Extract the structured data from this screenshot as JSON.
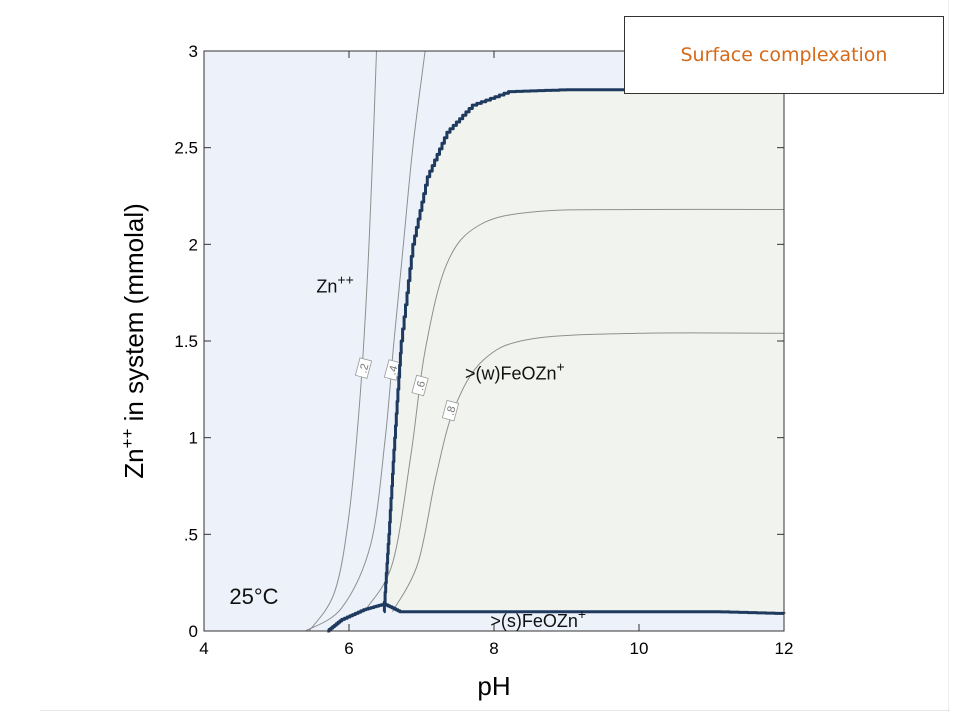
{
  "slide": {
    "title": "Surface complexation"
  },
  "colors": {
    "zn_region": "#edf1fa",
    "sorbed_region": "#f1f4ee",
    "boundary": "#1f3a5f",
    "contour": "#8f8f8f",
    "title_text": "#d46a1a"
  },
  "chart_data": {
    "type": "area",
    "title": "",
    "xlabel": "pH",
    "ylabel_main": "Zn",
    "ylabel_sup": "++",
    "ylabel_rest": " in system (mmolal)",
    "xlim": [
      4,
      12
    ],
    "ylim": [
      0,
      3
    ],
    "xticks": [
      4,
      6,
      8,
      10,
      12
    ],
    "xtick_labels": [
      "4",
      "6",
      "8",
      "10",
      "12"
    ],
    "yticks": [
      0,
      0.5,
      1,
      1.5,
      2,
      2.5,
      3
    ],
    "ytick_labels": [
      "0",
      ".5",
      "1",
      "1.5",
      "2",
      "2.5",
      "3"
    ],
    "regions": [
      {
        "name": "Zn",
        "sup": "++",
        "label_x": 5.55,
        "label_y": 1.75
      },
      {
        "name": ">(w)FeOZn",
        "sup": "+",
        "label_x": 7.6,
        "label_y": 1.3
      },
      {
        "name": ">(s)FeOZn",
        "sup": "+",
        "label_x": 7.95,
        "label_y": 0.02
      }
    ],
    "temperature_label": "25°C",
    "temperature_pos": [
      4.35,
      0.18
    ],
    "boundary_main": [
      [
        6.48,
        0.1
      ],
      [
        6.55,
        0.5
      ],
      [
        6.63,
        1.0
      ],
      [
        6.72,
        1.5
      ],
      [
        6.88,
        2.0
      ],
      [
        7.08,
        2.35
      ],
      [
        7.35,
        2.58
      ],
      [
        7.7,
        2.72
      ],
      [
        8.2,
        2.79
      ],
      [
        9.0,
        2.8
      ],
      [
        10.0,
        2.8
      ]
    ],
    "boundary_lower": [
      [
        5.7,
        0.0
      ],
      [
        5.9,
        0.06
      ],
      [
        6.2,
        0.11
      ],
      [
        6.48,
        0.14
      ],
      [
        6.7,
        0.1
      ],
      [
        7.0,
        0.1
      ],
      [
        8.0,
        0.1
      ],
      [
        9.0,
        0.1
      ],
      [
        10.0,
        0.1
      ],
      [
        11.0,
        0.1
      ],
      [
        12.0,
        0.09
      ]
    ],
    "contours": [
      {
        "label": ".2",
        "label_x": 6.2,
        "label_y": 1.36,
        "points": [
          [
            5.45,
            0.0
          ],
          [
            5.8,
            0.2
          ],
          [
            6.0,
            0.6
          ],
          [
            6.15,
            1.2
          ],
          [
            6.25,
            1.8
          ],
          [
            6.32,
            2.4
          ],
          [
            6.38,
            3.0
          ]
        ]
      },
      {
        "label": ".4",
        "label_x": 6.6,
        "label_y": 1.35,
        "points": [
          [
            5.4,
            0.0
          ],
          [
            5.9,
            0.12
          ],
          [
            6.3,
            0.45
          ],
          [
            6.5,
            1.0
          ],
          [
            6.62,
            1.5
          ],
          [
            6.75,
            2.0
          ],
          [
            6.88,
            2.5
          ],
          [
            7.05,
            3.0
          ]
        ]
      },
      {
        "label": ".6",
        "label_x": 6.98,
        "label_y": 1.27,
        "points": [
          [
            6.25,
            0.12
          ],
          [
            6.6,
            0.35
          ],
          [
            6.85,
            0.9
          ],
          [
            7.05,
            1.45
          ],
          [
            7.35,
            1.9
          ],
          [
            7.8,
            2.1
          ],
          [
            8.6,
            2.17
          ],
          [
            10.0,
            2.18
          ],
          [
            12.0,
            2.18
          ]
        ]
      },
      {
        "label": ".8",
        "label_x": 7.4,
        "label_y": 1.14,
        "points": [
          [
            6.6,
            0.1
          ],
          [
            6.95,
            0.35
          ],
          [
            7.2,
            0.8
          ],
          [
            7.45,
            1.15
          ],
          [
            7.85,
            1.4
          ],
          [
            8.5,
            1.51
          ],
          [
            10.0,
            1.54
          ],
          [
            12.0,
            1.54
          ]
        ]
      }
    ]
  }
}
